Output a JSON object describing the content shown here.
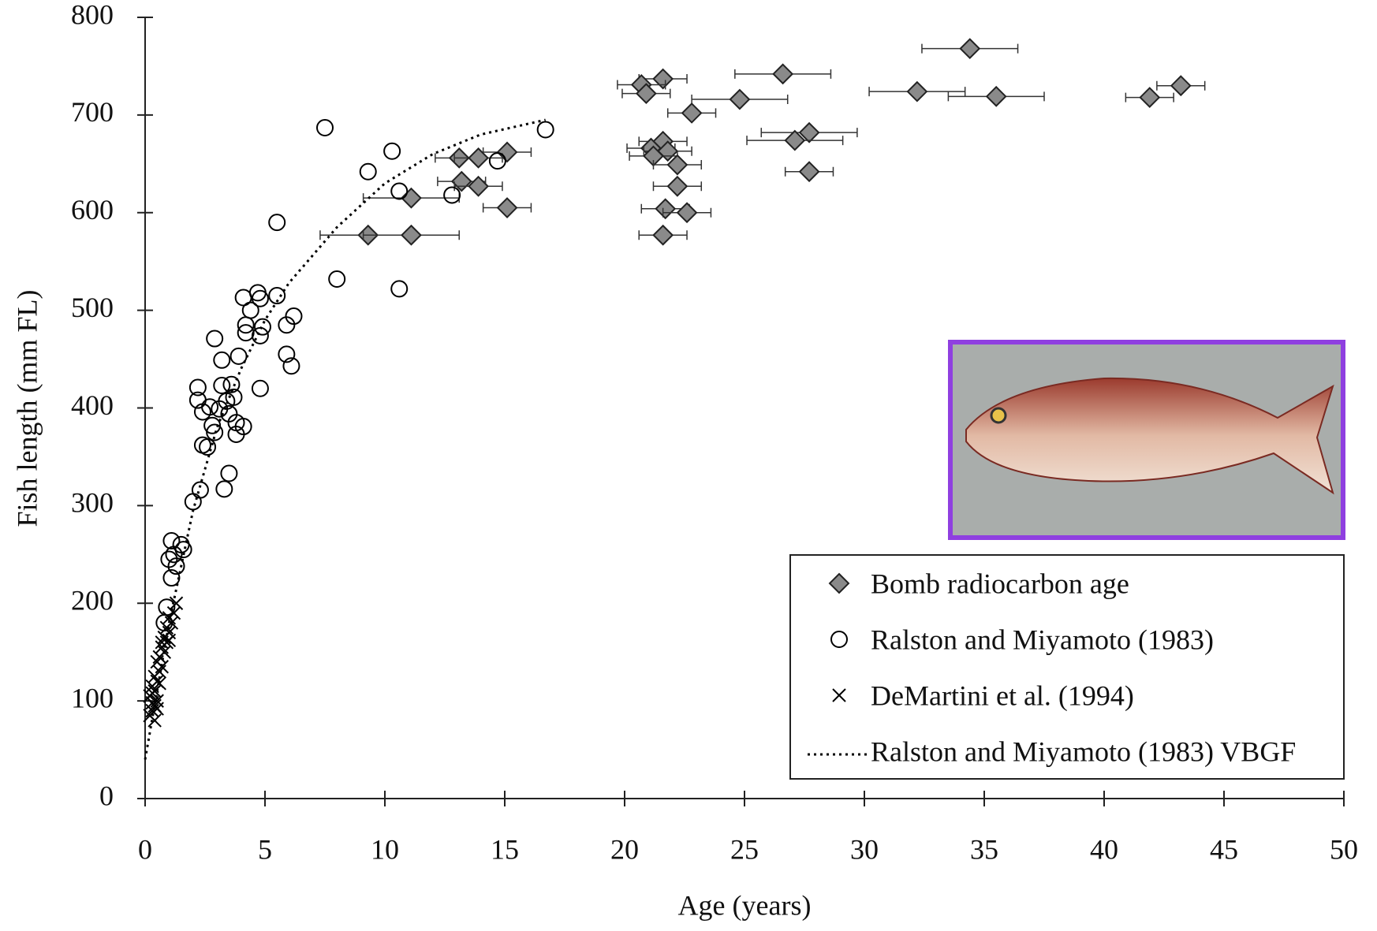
{
  "chart_data": {
    "type": "scatter",
    "xlabel": "Age (years)",
    "ylabel": "Fish length (mm FL)",
    "xlim": [
      0,
      50
    ],
    "xticks": [
      0,
      5,
      10,
      15,
      20,
      25,
      30,
      35,
      40,
      45,
      50
    ],
    "ylim": [
      0,
      800
    ],
    "yticks": [
      0,
      100,
      200,
      300,
      400,
      500,
      600,
      700,
      800
    ],
    "legend": "lower right",
    "series": [
      {
        "name": "Bomb radiocarbon age",
        "marker": "diamond",
        "color": "#8a8a8a",
        "x": [
          34.4,
          26.6,
          21.6,
          20.7,
          20.9,
          32.2,
          35.5,
          43.2,
          41.9,
          24.8,
          22.8,
          27.7,
          27.1,
          21.6,
          21.1,
          21.8,
          21.2,
          22.2,
          27.7,
          22.2,
          21.7,
          22.6,
          21.6,
          15.1,
          13.1,
          13.9,
          13.2,
          13.9,
          11.1,
          15.1,
          9.3,
          11.1
        ],
        "values": [
          768,
          742,
          737,
          731,
          722,
          724,
          719,
          730,
          718,
          716,
          702,
          682,
          674,
          673,
          666,
          663,
          658,
          649,
          642,
          627,
          604,
          600,
          577,
          662,
          656,
          656,
          632,
          627,
          615,
          605,
          577,
          577
        ],
        "xerr": [
          2,
          2,
          1,
          1,
          1,
          2,
          2,
          1,
          1,
          2,
          1,
          2,
          2,
          1,
          1,
          1,
          1,
          1,
          1,
          1,
          1,
          1,
          1,
          1,
          1,
          1,
          1,
          1,
          2,
          1,
          2,
          2
        ]
      },
      {
        "name": "Ralston and Miyamoto (1983)",
        "marker": "circle",
        "color": "#000000",
        "x": [
          7.5,
          16.7,
          10.3,
          14.7,
          9.3,
          10.6,
          12.8,
          5.5,
          8.0,
          10.6,
          4.1,
          4.7,
          4.8,
          5.5,
          4.4,
          6.2,
          5.9,
          4.2,
          4.2,
          4.9,
          4.8,
          5.9,
          6.1,
          2.9,
          3.9,
          3.2,
          2.2,
          3.2,
          3.6,
          2.2,
          3.7,
          3.4,
          3.1,
          2.7,
          2.4,
          3.5,
          3.8,
          4.1,
          2.8,
          2.9,
          3.8,
          2.4,
          2.6,
          4.8,
          3.5,
          3.3,
          2.3,
          2.0,
          1.1,
          1.5,
          1.6,
          1.2,
          1.0,
          1.3,
          1.1,
          0.9,
          0.8
        ],
        "values": [
          687,
          685,
          663,
          653,
          642,
          622,
          618,
          590,
          532,
          522,
          513,
          518,
          512,
          515,
          500,
          494,
          485,
          485,
          477,
          483,
          474,
          455,
          443,
          471,
          453,
          449,
          421,
          423,
          424,
          408,
          411,
          407,
          399,
          401,
          396,
          394,
          385,
          381,
          382,
          375,
          373,
          362,
          360,
          420,
          333,
          317,
          316,
          304,
          264,
          260,
          255,
          250,
          245,
          238,
          226,
          196,
          180
        ]
      },
      {
        "name": "DeMartini et al. (1994)",
        "marker": "x",
        "color": "#000000",
        "x": [
          0.2,
          0.3,
          0.3,
          0.4,
          0.2,
          0.4,
          0.5,
          0.3,
          0.5,
          0.4,
          0.6,
          0.5,
          0.7,
          0.6,
          0.8,
          0.7,
          0.9,
          0.8,
          1.0,
          0.9,
          1.1,
          1.0,
          1.2,
          1.3,
          0.6,
          0.3,
          0.7,
          1.0,
          0.5,
          0.4
        ],
        "values": [
          85,
          90,
          98,
          95,
          105,
          110,
          100,
          115,
          120,
          125,
          130,
          140,
          135,
          145,
          150,
          155,
          160,
          165,
          170,
          175,
          180,
          185,
          190,
          200,
          118,
          108,
          160,
          162,
          92,
          80
        ]
      },
      {
        "name": "Ralston and Miyamoto (1983) VBGF",
        "marker": "dotted-line",
        "color": "#000000",
        "x": [
          0,
          1,
          2,
          3,
          4,
          5,
          6,
          8,
          10,
          12,
          14,
          16.7
        ],
        "values": [
          40,
          180,
          295,
          380,
          440,
          490,
          528,
          585,
          630,
          660,
          680,
          695
        ]
      }
    ]
  }
}
